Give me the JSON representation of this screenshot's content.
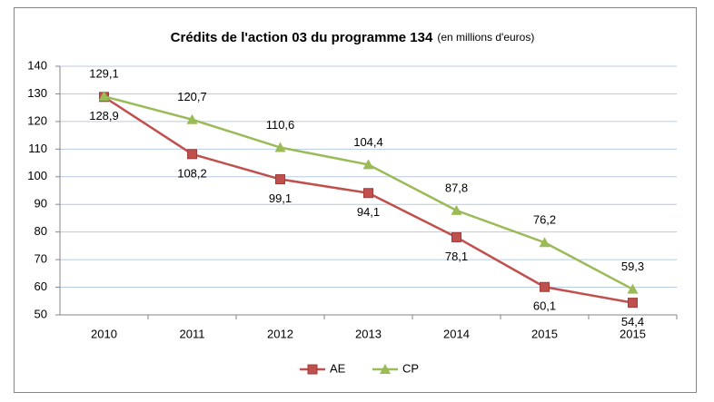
{
  "chart_data": {
    "type": "line",
    "title": "Crédits de l'action 03 du programme 134",
    "subtitle": "(en millions d'euros)",
    "categories": [
      "2010",
      "2011",
      "2012",
      "2013",
      "2014",
      "2015",
      "2015"
    ],
    "series": [
      {
        "name": "AE",
        "color": "#c0504d",
        "marker": "square",
        "values": [
          128.9,
          108.2,
          99.1,
          94.1,
          78.1,
          60.1,
          54.4
        ],
        "value_labels": [
          "128,9",
          "108,2",
          "99,1",
          "94,1",
          "78,1",
          "60,1",
          "54,4"
        ]
      },
      {
        "name": "CP",
        "color": "#9bbb59",
        "marker": "triangle",
        "values": [
          129.1,
          120.7,
          110.6,
          104.4,
          87.8,
          76.2,
          59.3
        ],
        "value_labels": [
          "129,1",
          "120,7",
          "110,6",
          "104,4",
          "87,8",
          "76,2",
          "59,3"
        ]
      }
    ],
    "ylim": [
      50,
      140
    ],
    "yticks": [
      50,
      60,
      70,
      80,
      90,
      100,
      110,
      120,
      130,
      140
    ],
    "grid": true,
    "legend": "bottom"
  }
}
